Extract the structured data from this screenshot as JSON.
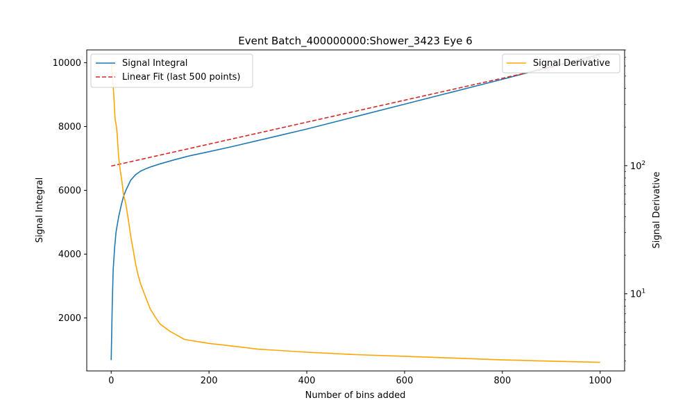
{
  "chart_data": {
    "type": "line",
    "title": "Event Batch_400000000:Shower_3423 Eye 6",
    "xlabel": "Number of bins added",
    "ylabel": "Signal Integral",
    "y2label": "Signal Derivative",
    "xlim": [
      -50,
      1050
    ],
    "ylim": [
      340,
      10400
    ],
    "y2lim": [
      2.5,
      800
    ],
    "y2scale": "log",
    "x_ticks": [
      0,
      200,
      400,
      600,
      800,
      1000
    ],
    "y_ticks": [
      2000,
      4000,
      6000,
      8000,
      10000
    ],
    "y2_ticks": [
      {
        "value": 10,
        "label": "10",
        "exp": "1"
      },
      {
        "value": 100,
        "label": "10",
        "exp": "2"
      }
    ],
    "grid": false,
    "legend_left": {
      "placement": "top-left",
      "entries": [
        "Signal Integral",
        "Linear Fit (last 500 points)"
      ]
    },
    "legend_right": {
      "placement": "top-right",
      "entries": [
        "Signal Derivative"
      ]
    },
    "series": [
      {
        "name": "Signal Integral",
        "axis": "left",
        "color": "#1f77b4",
        "style": "solid",
        "x": [
          0,
          2,
          4,
          7,
          10,
          15,
          20,
          25,
          30,
          40,
          50,
          60,
          70,
          80,
          100,
          130,
          160,
          200,
          250,
          300,
          400,
          500,
          600,
          700,
          800,
          900,
          1000
        ],
        "y": [
          680,
          2300,
          3500,
          4200,
          4700,
          5150,
          5500,
          5800,
          6000,
          6320,
          6490,
          6600,
          6670,
          6730,
          6830,
          6960,
          7080,
          7210,
          7380,
          7560,
          7920,
          8310,
          8700,
          9090,
          9480,
          9880,
          10260
        ]
      },
      {
        "name": "Linear Fit (last 500 points)",
        "axis": "left",
        "color": "#d62728",
        "style": "dashed",
        "x": [
          0,
          1000
        ],
        "y": [
          6760,
          10200
        ]
      },
      {
        "name": "Signal Derivative",
        "axis": "right",
        "color": "#ffa500",
        "style": "solid",
        "x": [
          0,
          2,
          4,
          6,
          8,
          10,
          12,
          15,
          18,
          22,
          25,
          30,
          35,
          40,
          45,
          50,
          55,
          60,
          70,
          80,
          90,
          100,
          120,
          150,
          200,
          250,
          300,
          400,
          500,
          600,
          700,
          800,
          900,
          1000
        ],
        "y": [
          650,
          520,
          420,
          320,
          230,
          210,
          180,
          120,
          95,
          75,
          60,
          50,
          38,
          28,
          22,
          17,
          14,
          12,
          9.5,
          7.6,
          6.6,
          5.8,
          5.1,
          4.4,
          4.1,
          3.9,
          3.7,
          3.5,
          3.35,
          3.25,
          3.15,
          3.05,
          2.98,
          2.92
        ]
      }
    ]
  }
}
